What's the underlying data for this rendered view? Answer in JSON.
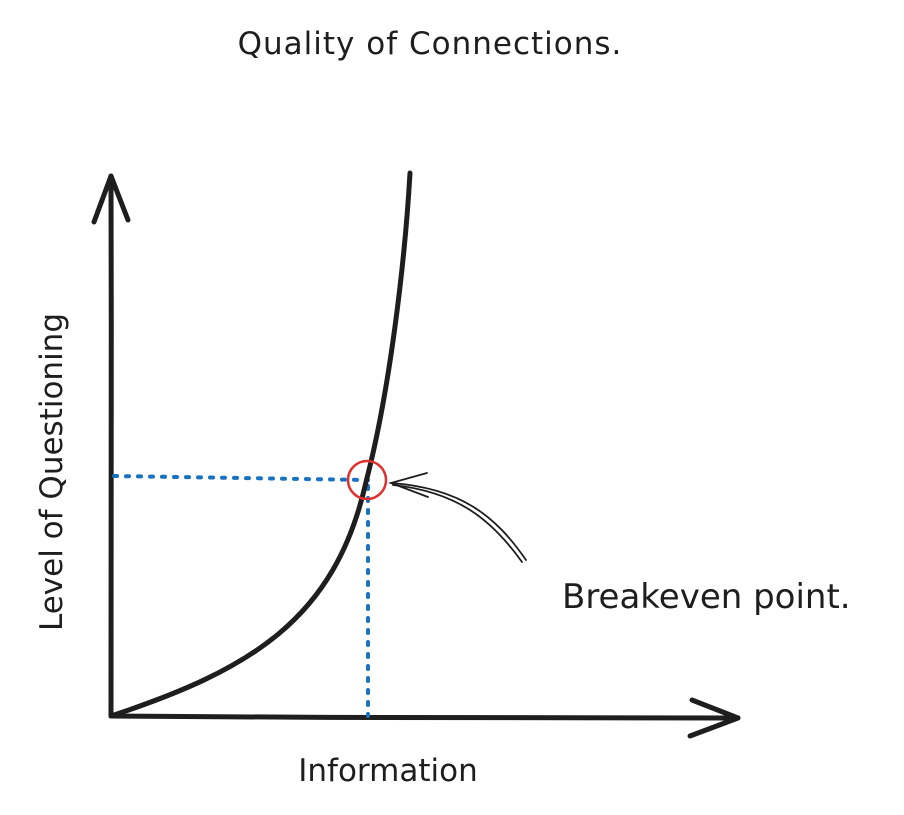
{
  "title": "Quality of Connections.",
  "x_axis_label": "Information",
  "y_axis_label": "Level of Questioning",
  "annotation": "Breakeven point.",
  "colors": {
    "ink": "#1e1e1e",
    "guide": "#1971c2",
    "highlight": "#e03131",
    "background": "#ffffff"
  }
}
